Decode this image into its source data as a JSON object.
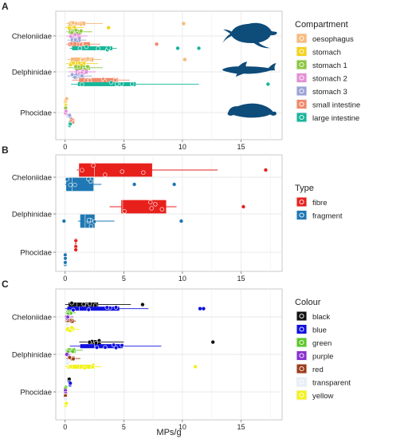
{
  "figure": {
    "xlabel": "MPs/g",
    "x_ticks": [
      0,
      5,
      10,
      15
    ],
    "categories": [
      "Cheloniidae",
      "Delphinidae",
      "Phocidae"
    ]
  },
  "chart_data": [
    {
      "panel_label": "A",
      "type": "box",
      "legend_title": "Compartment",
      "xlim": [
        -0.8,
        18.5
      ],
      "series": [
        {
          "name": "oesophagus",
          "color": "#F8B97A",
          "boxes": {
            "Cheloniidae": {
              "min": 0.1,
              "q1": 0.3,
              "median": 1.1,
              "q3": 1.7,
              "max": 3.2
            },
            "Delphinidae": {
              "min": 0.2,
              "q1": 0.5,
              "median": 1.3,
              "q3": 2.4,
              "max": 3.1
            },
            "Phocidae": {
              "min": 0.0,
              "q1": 0.0,
              "median": 0.1,
              "q3": 0.15,
              "max": 0.2
            }
          },
          "outliers": {
            "Cheloniidae": [
              10.1
            ],
            "Delphinidae": [
              10.2
            ],
            "Phocidae": []
          }
        },
        {
          "name": "stomach",
          "color": "#F3D31C",
          "boxes": {
            "Cheloniidae": {
              "min": 0.0,
              "q1": 0.2,
              "median": 0.5,
              "q3": 0.9,
              "max": 1.6
            },
            "Delphinidae": {
              "min": 0.1,
              "q1": 0.4,
              "median": 0.9,
              "q3": 1.7,
              "max": 2.8
            },
            "Phocidae": {
              "min": 0.0,
              "q1": 0.0,
              "median": 0.05,
              "q3": 0.1,
              "max": 0.2
            }
          },
          "outliers": {
            "Cheloniidae": [
              3.7
            ],
            "Delphinidae": [],
            "Phocidae": []
          }
        },
        {
          "name": "stomach 1",
          "color": "#8CC63E",
          "boxes": {
            "Cheloniidae": {
              "min": 0.1,
              "q1": 0.3,
              "median": 0.8,
              "q3": 1.4,
              "max": 2.3
            },
            "Delphinidae": {
              "min": 0.2,
              "q1": 0.8,
              "median": 1.5,
              "q3": 2.1,
              "max": 3.2
            },
            "Phocidae": {
              "min": 0.0,
              "q1": 0.0,
              "median": 0.05,
              "q3": 0.1,
              "max": 0.15
            }
          },
          "outliers": {
            "Cheloniidae": [],
            "Delphinidae": [],
            "Phocidae": []
          }
        },
        {
          "name": "stomach 2",
          "color": "#E58FD6",
          "boxes": {
            "Cheloniidae": {
              "min": 0.1,
              "q1": 0.4,
              "median": 0.9,
              "q3": 1.3,
              "max": 1.9
            },
            "Delphinidae": {
              "min": 0.3,
              "q1": 0.9,
              "median": 1.3,
              "q3": 1.9,
              "max": 2.6
            },
            "Phocidae": {
              "min": 0.0,
              "q1": 0.0,
              "median": 0.05,
              "q3": 0.1,
              "max": 0.1
            }
          },
          "outliers": {
            "Cheloniidae": [],
            "Delphinidae": [],
            "Phocidae": []
          }
        },
        {
          "name": "stomach 3",
          "color": "#9BA3D8",
          "boxes": {
            "Cheloniidae": {
              "min": 0.2,
              "q1": 0.5,
              "median": 0.9,
              "q3": 1.3,
              "max": 1.8
            },
            "Delphinidae": {
              "min": 0.2,
              "q1": 0.6,
              "median": 1.1,
              "q3": 1.6,
              "max": 2.3
            },
            "Phocidae": {
              "min": 0.1,
              "q1": 0.3,
              "median": 0.4,
              "q3": 0.5,
              "max": 0.6
            }
          },
          "outliers": {
            "Cheloniidae": [],
            "Delphinidae": [],
            "Phocidae": []
          }
        },
        {
          "name": "small intestine",
          "color": "#F0896B",
          "boxes": {
            "Cheloniidae": {
              "min": 0.1,
              "q1": 0.3,
              "median": 1.0,
              "q3": 2.1,
              "max": 3.0
            },
            "Delphinidae": {
              "min": 0.6,
              "q1": 1.2,
              "median": 2.2,
              "q3": 4.5,
              "max": 5.5
            },
            "Phocidae": {
              "min": 0.3,
              "q1": 0.4,
              "median": 0.5,
              "q3": 0.7,
              "max": 0.8
            }
          },
          "outliers": {
            "Cheloniidae": [
              7.8
            ],
            "Delphinidae": [],
            "Phocidae": []
          }
        },
        {
          "name": "large intestine",
          "color": "#17B69A",
          "boxes": {
            "Cheloniidae": {
              "min": 0.4,
              "q1": 0.6,
              "median": 1.4,
              "q3": 4.0,
              "max": 4.4
            },
            "Delphinidae": {
              "min": 0.5,
              "q1": 1.1,
              "median": 4.3,
              "q3": 6.0,
              "max": 11.4
            },
            "Phocidae": {
              "min": 0.2,
              "q1": 0.3,
              "median": 0.4,
              "q3": 0.45,
              "max": 0.5
            }
          },
          "outliers": {
            "Cheloniidae": [
              9.6,
              11.4
            ],
            "Delphinidae": [
              17.3
            ],
            "Phocidae": []
          }
        }
      ]
    },
    {
      "panel_label": "B",
      "type": "box",
      "legend_title": "Type",
      "xlim": [
        -0.8,
        18.5
      ],
      "series": [
        {
          "name": "fibre",
          "color": "#E8201C",
          "boxes": {
            "Cheloniidae": {
              "min": 1.0,
              "q1": 1.2,
              "median": 2.5,
              "q3": 7.4,
              "max": 13.0
            },
            "Delphinidae": {
              "min": 3.8,
              "q1": 4.8,
              "median": 4.9,
              "q3": 8.6,
              "max": 9.5
            },
            "Phocidae": {
              "min": 0.8,
              "q1": 0.85,
              "median": 0.9,
              "q3": 0.95,
              "max": 1.0
            }
          },
          "outliers": {
            "Cheloniidae": [
              17.1
            ],
            "Delphinidae": [
              15.2
            ],
            "Phocidae": []
          }
        },
        {
          "name": "fragment",
          "color": "#1F78B4",
          "boxes": {
            "Cheloniidae": {
              "min": 0.0,
              "q1": 0.1,
              "median": 0.6,
              "q3": 2.4,
              "max": 3.1
            },
            "Delphinidae": {
              "min": 1.1,
              "q1": 1.3,
              "median": 1.7,
              "q3": 2.5,
              "max": 4.2
            },
            "Phocidae": {
              "min": 0.0,
              "q1": 0.0,
              "median": 0.0,
              "q3": 0.02,
              "max": 0.05
            }
          },
          "outliers": {
            "Cheloniidae": [
              5.9,
              9.3
            ],
            "Delphinidae": [
              -0.1,
              9.9
            ],
            "Phocidae": []
          }
        }
      ]
    },
    {
      "panel_label": "C",
      "type": "box",
      "legend_title": "Colour",
      "xlim": [
        -0.8,
        18.5
      ],
      "series": [
        {
          "name": "black",
          "color": "#111111",
          "boxes": {
            "Cheloniidae": {
              "min": 0.0,
              "q1": 0.3,
              "median": 1.0,
              "q3": 2.8,
              "max": 5.6
            },
            "Delphinidae": {
              "min": 1.2,
              "q1": 2.0,
              "median": 2.7,
              "q3": 3.0,
              "max": 5.0
            },
            "Phocidae": {
              "min": 0.2,
              "q1": 0.3,
              "median": 0.35,
              "q3": 0.4,
              "max": 0.5
            }
          },
          "outliers": {
            "Cheloniidae": [
              6.6
            ],
            "Delphinidae": [
              12.6
            ],
            "Phocidae": []
          }
        },
        {
          "name": "blue",
          "color": "#1010E0",
          "boxes": {
            "Cheloniidae": {
              "min": 0.0,
              "q1": 0.2,
              "median": 1.2,
              "q3": 4.6,
              "max": 7.1
            },
            "Delphinidae": {
              "min": 0.4,
              "q1": 1.3,
              "median": 2.5,
              "q3": 4.9,
              "max": 8.2
            },
            "Phocidae": {
              "min": 0.3,
              "q1": 0.35,
              "median": 0.4,
              "q3": 0.5,
              "max": 0.6
            }
          },
          "outliers": {
            "Cheloniidae": [
              11.5,
              11.8
            ],
            "Delphinidae": [],
            "Phocidae": []
          }
        },
        {
          "name": "green",
          "color": "#5EC72A",
          "boxes": {
            "Cheloniidae": {
              "min": 0.0,
              "q1": 0.1,
              "median": 0.3,
              "q3": 0.6,
              "max": 0.9
            },
            "Delphinidae": {
              "min": 0.0,
              "q1": 0.2,
              "median": 0.5,
              "q3": 0.8,
              "max": 1.5
            },
            "Phocidae": {
              "min": 0.0,
              "q1": 0.0,
              "median": 0.05,
              "q3": 0.08,
              "max": 0.1
            }
          },
          "outliers": {
            "Cheloniidae": [],
            "Delphinidae": [],
            "Phocidae": []
          }
        },
        {
          "name": "purple",
          "color": "#8A30D0",
          "boxes": {
            "Cheloniidae": {
              "min": 0.0,
              "q1": 0.1,
              "median": 0.2,
              "q3": 0.4,
              "max": 0.7
            },
            "Delphinidae": {
              "min": 0.0,
              "q1": 0.1,
              "median": 0.2,
              "q3": 0.3,
              "max": 0.5
            },
            "Phocidae": {
              "min": 0.0,
              "q1": 0.0,
              "median": 0.02,
              "q3": 0.05,
              "max": 0.08
            }
          },
          "outliers": {
            "Cheloniidae": [],
            "Delphinidae": [],
            "Phocidae": []
          }
        },
        {
          "name": "red",
          "color": "#9C3D1A",
          "boxes": {
            "Cheloniidae": {
              "min": 0.0,
              "q1": 0.2,
              "median": 0.4,
              "q3": 0.7,
              "max": 0.9
            },
            "Delphinidae": {
              "min": 0.1,
              "q1": 0.3,
              "median": 0.5,
              "q3": 0.8,
              "max": 1.3
            },
            "Phocidae": {
              "min": 0.0,
              "q1": 0.0,
              "median": 0.02,
              "q3": 0.05,
              "max": 0.08
            }
          },
          "outliers": {
            "Cheloniidae": [],
            "Delphinidae": [],
            "Phocidae": []
          }
        },
        {
          "name": "transparent",
          "color": "#E7EEF8",
          "boxes": {
            "Cheloniidae": {
              "min": 0.0,
              "q1": 0.1,
              "median": 0.2,
              "q3": 0.3,
              "max": 0.5
            },
            "Delphinidae": {
              "min": 0.0,
              "q1": 0.1,
              "median": 0.2,
              "q3": 0.4,
              "max": 0.6
            },
            "Phocidae": {
              "min": 0.0,
              "q1": 0.0,
              "median": 0.05,
              "q3": 0.1,
              "max": 0.2
            }
          },
          "outliers": {
            "Cheloniidae": [],
            "Delphinidae": [],
            "Phocidae": []
          }
        },
        {
          "name": "yellow",
          "color": "#F2F21A",
          "boxes": {
            "Cheloniidae": {
              "min": 0.0,
              "q1": 0.1,
              "median": 0.4,
              "q3": 0.8,
              "max": 1.2
            },
            "Delphinidae": {
              "min": 0.0,
              "q1": 0.2,
              "median": 1.2,
              "q3": 2.5,
              "max": 3.1
            },
            "Phocidae": {
              "min": 0.0,
              "q1": 0.0,
              "median": 0.05,
              "q3": 0.1,
              "max": 0.2
            }
          },
          "outliers": {
            "Cheloniidae": [],
            "Delphinidae": [
              11.1
            ],
            "Phocidae": []
          }
        }
      ]
    }
  ]
}
